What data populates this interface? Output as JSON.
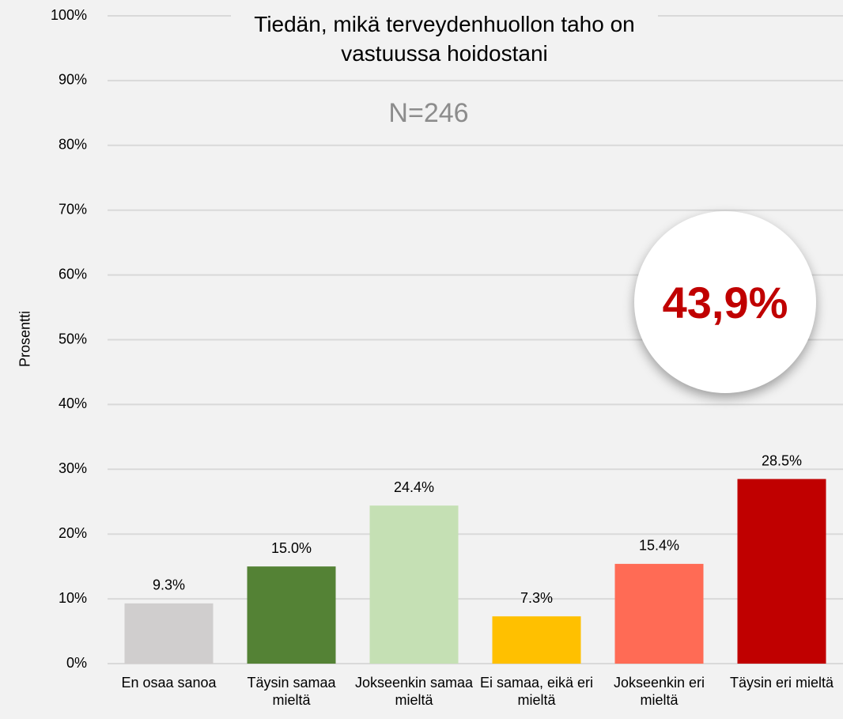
{
  "chart_data": {
    "type": "bar",
    "title": "Tiedän, mikä terveydenhuollon taho on vastuussa hoidostani",
    "subtitle": "N=246",
    "annotation": "43,9%",
    "y_label": "Prosentti",
    "categories": [
      "En osaa sanoa",
      "Täysin samaa mieltä",
      "Jokseenkin samaa mieltä",
      "Ei samaa, eikä eri mieltä",
      "Jokseenkin eri mieltä",
      "Täysin eri mieltä"
    ],
    "values": [
      9.3,
      15.0,
      24.4,
      7.3,
      15.4,
      28.5
    ],
    "value_labels": [
      "9.3%",
      "15.0%",
      "24.4%",
      "7.3%",
      "15.4%",
      "28.5%"
    ],
    "colors": [
      "#d0cece",
      "#548235",
      "#c5e0b4",
      "#ffc000",
      "#ff6b55",
      "#c00000"
    ],
    "ylim": [
      0,
      100
    ],
    "yticks": [
      {
        "value": 0,
        "label": "0%"
      },
      {
        "value": 10,
        "label": "10%"
      },
      {
        "value": 20,
        "label": "20%"
      },
      {
        "value": 30,
        "label": "30%"
      },
      {
        "value": 40,
        "label": "40%"
      },
      {
        "value": 50,
        "label": "50%"
      },
      {
        "value": 60,
        "label": "60%"
      },
      {
        "value": 70,
        "label": "70%"
      },
      {
        "value": 80,
        "label": "80%"
      },
      {
        "value": 90,
        "label": "90%"
      },
      {
        "value": 100,
        "label": "100%"
      }
    ],
    "grid": true
  }
}
